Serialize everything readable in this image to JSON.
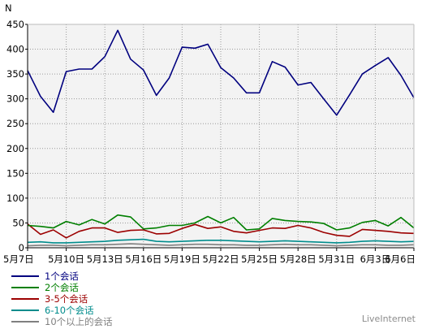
{
  "chart_data": {
    "type": "line",
    "ylabel": "N",
    "ylim": [
      0,
      450
    ],
    "yticks": [
      0,
      50,
      100,
      150,
      200,
      250,
      300,
      350,
      400,
      450
    ],
    "grid": true,
    "legend_position": "bottom-left",
    "x": [
      "5月7日",
      "5月8日",
      "5月9日",
      "5月10日",
      "5月11日",
      "5月12日",
      "5月13日",
      "5月14日",
      "5月15日",
      "5月16日",
      "5月17日",
      "5月18日",
      "5月19日",
      "5月20日",
      "5月21日",
      "5月22日",
      "5月23日",
      "5月24日",
      "5月25日",
      "5月26日",
      "5月27日",
      "5月28日",
      "5月29日",
      "5月30日",
      "5月31日",
      "6月1日",
      "6月2日",
      "6月3日",
      "6月4日",
      "6月5日",
      "6月6日"
    ],
    "xtick_labels": [
      "5月7日",
      "5月10日",
      "5月13日",
      "5月16日",
      "5月19日",
      "5月22日",
      "5月25日",
      "5月28日",
      "5月31日",
      "6月3日",
      "6月6日"
    ],
    "series": [
      {
        "name": "1个会话",
        "color": "#00007f",
        "values": [
          357,
          305,
          273,
          355,
          360,
          360,
          385,
          438,
          380,
          358,
          307,
          342,
          404,
          402,
          410,
          363,
          342,
          312,
          312,
          375,
          364,
          328,
          333,
          300,
          267,
          308,
          350,
          367,
          383,
          347,
          302
        ]
      },
      {
        "name": "2个会话",
        "color": "#007f00",
        "values": [
          45,
          43,
          40,
          53,
          46,
          57,
          48,
          66,
          62,
          38,
          40,
          45,
          45,
          50,
          63,
          50,
          61,
          36,
          38,
          59,
          55,
          53,
          52,
          49,
          36,
          40,
          51,
          55,
          44,
          61,
          40
        ]
      },
      {
        "name": "3-5个会话",
        "color": "#9c0000",
        "values": [
          48,
          27,
          36,
          20,
          33,
          40,
          40,
          31,
          35,
          36,
          28,
          29,
          39,
          47,
          39,
          42,
          33,
          30,
          35,
          40,
          39,
          45,
          40,
          31,
          25,
          23,
          37,
          35,
          33,
          30,
          29
        ]
      },
      {
        "name": "6-10个会话",
        "color": "#008c8c",
        "values": [
          11,
          12,
          10,
          10,
          11,
          12,
          13,
          15,
          16,
          17,
          13,
          12,
          13,
          14,
          15,
          15,
          14,
          13,
          12,
          13,
          14,
          13,
          12,
          11,
          10,
          11,
          13,
          14,
          13,
          12,
          13
        ]
      },
      {
        "name": "10个以上的会话",
        "color": "#808080",
        "values": [
          4,
          5,
          5,
          4,
          5,
          6,
          6,
          7,
          8,
          7,
          6,
          5,
          6,
          7,
          7,
          6,
          6,
          5,
          5,
          6,
          7,
          6,
          6,
          5,
          4,
          5,
          6,
          6,
          5,
          5,
          6
        ]
      }
    ]
  },
  "brand_text": "LiveInternet"
}
